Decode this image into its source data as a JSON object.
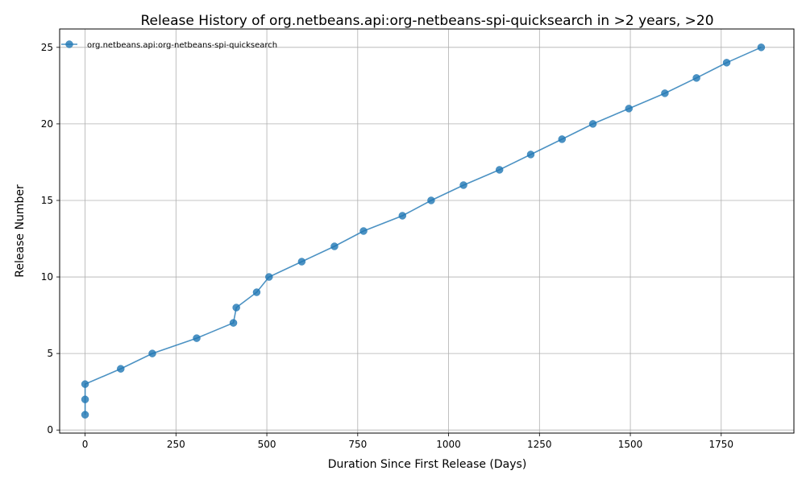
{
  "chart_data": {
    "type": "line",
    "title": "Release History of org.netbeans.api:org-netbeans-spi-quicksearch in >2 years, >20",
    "xlabel": "Duration Since First Release (Days)",
    "ylabel": "Release Number",
    "xlim": [
      -70,
      1950
    ],
    "ylim": [
      -0.2,
      26.2
    ],
    "xticks": [
      0,
      250,
      500,
      750,
      1000,
      1250,
      1500,
      1750
    ],
    "yticks": [
      0,
      5,
      10,
      15,
      20,
      25
    ],
    "grid": true,
    "legend_position": "top-left",
    "series": [
      {
        "name": "org.netbeans.api:org-netbeans-spi-quicksearch",
        "color": "#1f77b4",
        "marker": "circle",
        "x": [
          0,
          0,
          0,
          98,
          185,
          307,
          408,
          416,
          472,
          506,
          596,
          686,
          766,
          873,
          952,
          1041,
          1140,
          1226,
          1312,
          1397,
          1496,
          1595,
          1682,
          1765,
          1860
        ],
        "y": [
          1,
          2,
          3,
          4,
          5,
          6,
          7,
          8,
          9,
          10,
          11,
          12,
          13,
          14,
          15,
          16,
          17,
          18,
          19,
          20,
          21,
          22,
          23,
          24,
          25
        ]
      }
    ]
  }
}
